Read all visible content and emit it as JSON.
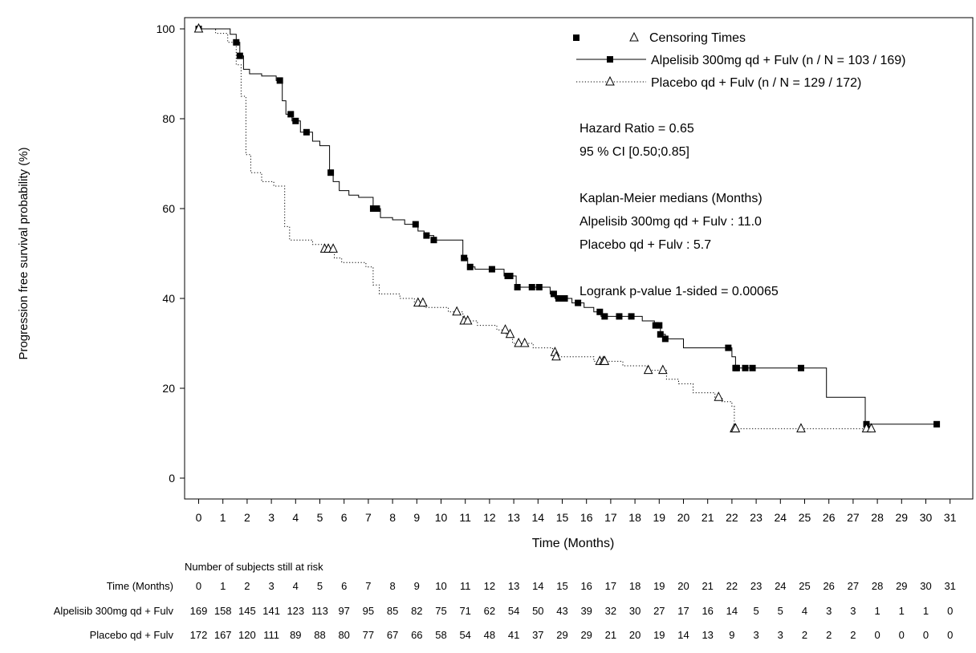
{
  "chart_data": {
    "type": "line",
    "subtype": "kaplan-meier step",
    "xlabel": "Time (Months)",
    "ylabel": "Progression free survival probability (%)",
    "xlim": [
      0,
      31
    ],
    "ylim": [
      0,
      100
    ],
    "x_ticks": [
      0,
      1,
      2,
      3,
      4,
      5,
      6,
      7,
      8,
      9,
      10,
      11,
      12,
      13,
      14,
      15,
      16,
      17,
      18,
      19,
      20,
      21,
      22,
      23,
      24,
      25,
      26,
      27,
      28,
      29,
      30,
      31
    ],
    "y_ticks": [
      0,
      20,
      40,
      60,
      80,
      100
    ],
    "grid": false,
    "legend": {
      "placement": "top-right",
      "censor_label": "Censoring Times",
      "entries": [
        "Alpelisib 300mg qd + Fulv (n / N = 103 / 169)",
        "Placebo qd + Fulv (n / N = 129 / 172)"
      ]
    },
    "annotations": [
      "Hazard Ratio = 0.65",
      "95 % CI [0.50;0.85]",
      "",
      "Kaplan-Meier medians (Months)",
      "Alpelisib 300mg qd + Fulv : 11.0",
      "Placebo qd + Fulv : 5.7",
      "",
      "Logrank p-value 1-sided = 0.00065"
    ],
    "series": [
      {
        "name": "Alpelisib 300mg qd + Fulv",
        "line_style": "solid",
        "censor_marker": "square",
        "steps": [
          [
            0,
            100
          ],
          [
            1.3,
            98.8
          ],
          [
            1.55,
            97
          ],
          [
            1.7,
            94
          ],
          [
            1.85,
            91
          ],
          [
            2.1,
            90
          ],
          [
            2.6,
            89.5
          ],
          [
            3.2,
            88.5
          ],
          [
            3.45,
            84
          ],
          [
            3.6,
            81
          ],
          [
            3.85,
            79.5
          ],
          [
            4.2,
            77
          ],
          [
            4.7,
            75
          ],
          [
            5.0,
            74
          ],
          [
            5.4,
            68
          ],
          [
            5.55,
            66
          ],
          [
            5.8,
            64
          ],
          [
            6.2,
            63
          ],
          [
            6.6,
            62.5
          ],
          [
            7.2,
            60
          ],
          [
            7.5,
            58
          ],
          [
            8.0,
            57.5
          ],
          [
            8.5,
            56.5
          ],
          [
            9.05,
            55
          ],
          [
            9.3,
            54
          ],
          [
            9.7,
            53
          ],
          [
            10.9,
            49
          ],
          [
            11.1,
            47
          ],
          [
            11.4,
            46.5
          ],
          [
            12.6,
            45
          ],
          [
            13.1,
            42.5
          ],
          [
            14.5,
            41
          ],
          [
            14.7,
            40
          ],
          [
            15.4,
            39
          ],
          [
            15.9,
            38
          ],
          [
            16.3,
            37
          ],
          [
            16.6,
            36
          ],
          [
            18.3,
            35
          ],
          [
            18.8,
            34
          ],
          [
            19.05,
            32
          ],
          [
            19.25,
            31
          ],
          [
            20.0,
            29
          ],
          [
            22.0,
            27
          ],
          [
            22.15,
            24.5
          ],
          [
            25.9,
            18
          ],
          [
            27.5,
            12
          ]
        ],
        "end_x": 30.5,
        "censor_x": [
          0,
          1.55,
          1.7,
          3.35,
          3.8,
          4.0,
          4.45,
          5.45,
          7.2,
          7.35,
          8.95,
          9.4,
          9.7,
          10.95,
          11.2,
          12.1,
          12.75,
          12.85,
          13.15,
          13.75,
          14.05,
          14.65,
          14.85,
          15.1,
          15.65,
          16.55,
          16.75,
          17.35,
          17.85,
          18.85,
          19.0,
          19.05,
          19.25,
          21.85,
          22.15,
          22.2,
          22.55,
          22.85,
          24.85,
          27.55,
          30.45
        ]
      },
      {
        "name": "Placebo qd + Fulv",
        "line_style": "dotted",
        "censor_marker": "triangle",
        "steps": [
          [
            0,
            100
          ],
          [
            0.7,
            99
          ],
          [
            1.2,
            97
          ],
          [
            1.55,
            92
          ],
          [
            1.75,
            85
          ],
          [
            1.95,
            72
          ],
          [
            2.15,
            68
          ],
          [
            2.6,
            66
          ],
          [
            3.1,
            65
          ],
          [
            3.55,
            56
          ],
          [
            3.75,
            53
          ],
          [
            4.7,
            52
          ],
          [
            5.2,
            51
          ],
          [
            5.6,
            49
          ],
          [
            5.9,
            48
          ],
          [
            6.9,
            47
          ],
          [
            7.2,
            43
          ],
          [
            7.45,
            41
          ],
          [
            8.3,
            40
          ],
          [
            8.9,
            39
          ],
          [
            9.3,
            38
          ],
          [
            10.3,
            37
          ],
          [
            10.9,
            35
          ],
          [
            11.5,
            34
          ],
          [
            12.3,
            33
          ],
          [
            12.7,
            32
          ],
          [
            12.95,
            30
          ],
          [
            13.8,
            29
          ],
          [
            14.6,
            28
          ],
          [
            14.75,
            27
          ],
          [
            16.3,
            26
          ],
          [
            17.5,
            25
          ],
          [
            18.5,
            24
          ],
          [
            19.3,
            22
          ],
          [
            19.8,
            21
          ],
          [
            20.4,
            19
          ],
          [
            21.3,
            18
          ],
          [
            21.6,
            17
          ],
          [
            22.0,
            16
          ],
          [
            22.1,
            11
          ]
        ],
        "end_x": 27.7,
        "censor_x": [
          0,
          5.2,
          5.35,
          5.55,
          9.05,
          9.25,
          10.65,
          10.95,
          11.1,
          12.65,
          12.85,
          13.2,
          13.45,
          14.7,
          14.75,
          16.55,
          16.7,
          16.75,
          18.55,
          19.15,
          21.45,
          22.1,
          22.15,
          24.85,
          27.55,
          27.75
        ]
      }
    ],
    "risk_table": {
      "caption": "Number of subjects still at risk",
      "time_label": "Time (Months)",
      "times": [
        0,
        1,
        2,
        3,
        4,
        5,
        6,
        7,
        8,
        9,
        10,
        11,
        12,
        13,
        14,
        15,
        16,
        17,
        18,
        19,
        20,
        21,
        22,
        23,
        24,
        25,
        26,
        27,
        28,
        29,
        30,
        31
      ],
      "rows": [
        {
          "label": "Alpelisib 300mg qd + Fulv",
          "values": [
            169,
            158,
            145,
            141,
            123,
            113,
            97,
            95,
            85,
            82,
            75,
            71,
            62,
            54,
            50,
            43,
            39,
            32,
            30,
            27,
            17,
            16,
            14,
            5,
            5,
            4,
            3,
            3,
            1,
            1,
            1,
            0
          ]
        },
        {
          "label": "Placebo qd + Fulv",
          "values": [
            172,
            167,
            120,
            111,
            89,
            88,
            80,
            77,
            67,
            66,
            58,
            54,
            48,
            41,
            37,
            29,
            29,
            21,
            20,
            19,
            14,
            13,
            9,
            3,
            3,
            2,
            2,
            2,
            0,
            0,
            0,
            0
          ]
        }
      ]
    }
  }
}
